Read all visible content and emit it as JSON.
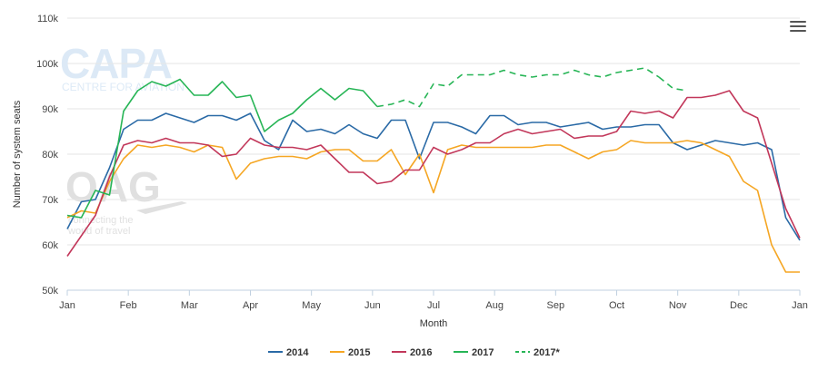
{
  "toolbar": {
    "menu_icon": "hamburger-menu-icon"
  },
  "watermark": {
    "capa_logo": "CAPA",
    "capa_sub": "CENTRE FOR AVIATION",
    "oag_logo": "OAG",
    "oag_sub1": "connecting the",
    "oag_sub2": "world of travel"
  },
  "colors": {
    "2014": "#2a6aa6",
    "2015": "#f5a623",
    "2016": "#c2375a",
    "2017": "#27b556",
    "2017*": "#27b556"
  },
  "chart_data": {
    "type": "line",
    "xlabel": "Month",
    "ylabel": "Number of system seats",
    "ylim": [
      50000,
      110000
    ],
    "y_ticks": [
      50000,
      60000,
      70000,
      80000,
      90000,
      100000,
      110000
    ],
    "y_tick_labels": [
      "50k",
      "60k",
      "70k",
      "80k",
      "90k",
      "100k",
      "110k"
    ],
    "x_tick_labels": [
      "Jan",
      "Feb",
      "Mar",
      "Apr",
      "May",
      "Jun",
      "Jul",
      "Aug",
      "Sep",
      "Oct",
      "Nov",
      "Dec",
      "Jan"
    ],
    "x_unit": "week",
    "xlim": [
      0,
      52
    ],
    "grid": "horizontal",
    "legend_position": "bottom",
    "series": [
      {
        "name": "2014",
        "color": "#2a6aa6",
        "dashed": false,
        "x": [
          0,
          1,
          2,
          3,
          4,
          5,
          6,
          7,
          8,
          9,
          10,
          11,
          12,
          13,
          14,
          15,
          16,
          17,
          18,
          19,
          20,
          21,
          22,
          23,
          24,
          25,
          26,
          27,
          28,
          29,
          30,
          31,
          32,
          33,
          34,
          35,
          36,
          37,
          38,
          39,
          40,
          41,
          42,
          43,
          44,
          45,
          46,
          47,
          48,
          49,
          50,
          51,
          52
        ],
        "y": [
          63500,
          69500,
          70000,
          77000,
          85500,
          87500,
          87500,
          89000,
          88000,
          87000,
          88500,
          88500,
          87500,
          89000,
          83000,
          81000,
          87500,
          85000,
          85500,
          84500,
          86500,
          84500,
          83500,
          87500,
          87500,
          79000,
          87000,
          87000,
          86000,
          84500,
          88500,
          88500,
          86500,
          87000,
          87000,
          86000,
          86500,
          87000,
          85500,
          86000,
          86000,
          86500,
          86500,
          82500,
          81000,
          82000,
          83000,
          82500,
          82000,
          82500,
          81000,
          66000,
          61000
        ]
      },
      {
        "name": "2015",
        "color": "#f5a623",
        "dashed": false,
        "x": [
          0,
          1,
          2,
          3,
          4,
          5,
          6,
          7,
          8,
          9,
          10,
          11,
          12,
          13,
          14,
          15,
          16,
          17,
          18,
          19,
          20,
          21,
          22,
          23,
          24,
          25,
          26,
          27,
          28,
          29,
          30,
          31,
          32,
          33,
          34,
          35,
          36,
          37,
          38,
          39,
          40,
          41,
          42,
          43,
          44,
          45,
          46,
          47,
          48,
          49,
          50,
          51,
          52
        ],
        "y": [
          66000,
          67500,
          67000,
          74000,
          79000,
          82000,
          81500,
          82000,
          81500,
          80500,
          82000,
          81500,
          74500,
          78000,
          79000,
          79500,
          79500,
          79000,
          80500,
          81000,
          81000,
          78500,
          78500,
          81000,
          75500,
          80000,
          71500,
          81000,
          82000,
          81500,
          81500,
          81500,
          81500,
          81500,
          82000,
          82000,
          80500,
          79000,
          80500,
          81000,
          83000,
          82500,
          82500,
          82500,
          83000,
          82500,
          81000,
          79500,
          74000,
          72000,
          60000,
          54000,
          54000
        ]
      },
      {
        "name": "2016",
        "color": "#c2375a",
        "dashed": false,
        "x": [
          0,
          1,
          2,
          3,
          4,
          5,
          6,
          7,
          8,
          9,
          10,
          11,
          12,
          13,
          14,
          15,
          16,
          17,
          18,
          19,
          20,
          21,
          22,
          23,
          24,
          25,
          26,
          27,
          28,
          29,
          30,
          31,
          32,
          33,
          34,
          35,
          36,
          37,
          38,
          39,
          40,
          41,
          42,
          43,
          44,
          45,
          46,
          47,
          48,
          49,
          50,
          51,
          52
        ],
        "y": [
          57500,
          62000,
          66500,
          75000,
          82000,
          83000,
          82500,
          83500,
          82500,
          82500,
          82000,
          79500,
          80000,
          83500,
          82000,
          81500,
          81500,
          81000,
          82000,
          79000,
          76000,
          76000,
          73500,
          74000,
          76500,
          76500,
          81500,
          80000,
          81000,
          82500,
          82500,
          84500,
          85500,
          84500,
          85000,
          85500,
          83500,
          84000,
          84000,
          85000,
          89500,
          89000,
          89500,
          88000,
          92500,
          92500,
          93000,
          94000,
          89500,
          88000,
          78000,
          68000,
          61500
        ]
      },
      {
        "name": "2017",
        "color": "#27b556",
        "dashed": false,
        "x": [
          0,
          1,
          2,
          3,
          4,
          5,
          6,
          7,
          8,
          9,
          10,
          11,
          12,
          13,
          14,
          15,
          16,
          17,
          18,
          19,
          20,
          21,
          22
        ],
        "y": [
          66500,
          66000,
          72000,
          71000,
          89500,
          94000,
          96000,
          95000,
          96500,
          93000,
          93000,
          96000,
          92500,
          93000,
          85000,
          87500,
          89000,
          92000,
          94500,
          92000,
          94500,
          94000,
          90500
        ]
      },
      {
        "name": "2017*",
        "color": "#27b556",
        "dashed": true,
        "x": [
          22,
          23,
          24,
          25,
          26,
          27,
          28,
          29,
          30,
          31,
          32,
          33,
          34,
          35,
          36,
          37,
          38,
          39,
          40,
          41,
          42
        ],
        "y": [
          90500,
          91000,
          92000,
          90500,
          95500,
          95000,
          97500,
          97500,
          97500,
          98500,
          97500,
          97000,
          97500,
          97500,
          98500,
          97500,
          97000,
          98000,
          98500,
          99000,
          97000
        ]
      },
      {
        "name": "2017*",
        "color": "#27b556",
        "dashed": true,
        "legend": false,
        "x": [
          42,
          43,
          44
        ],
        "y": [
          97000,
          94500,
          94000
        ]
      }
    ]
  }
}
